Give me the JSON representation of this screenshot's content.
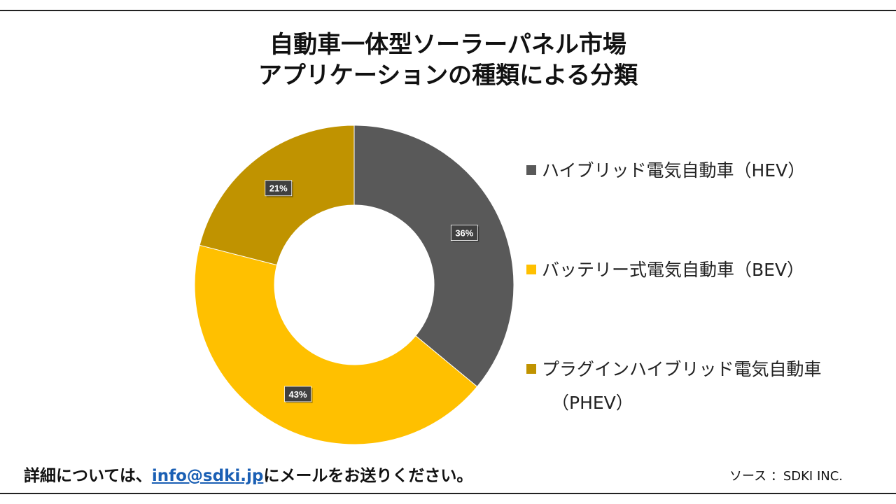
{
  "title": {
    "line1": "自動車一体型ソーラーパネル市場",
    "line2": "アプリケーションの種類による分類"
  },
  "chart_data": {
    "type": "pie",
    "variant": "donut",
    "categories": [
      "ハイブリッド電気自動車（HEV）",
      "バッテリー式電気自動車（BEV）",
      "プラグインハイブリッド電気自動車（PHEV）"
    ],
    "values": [
      36,
      43,
      21
    ],
    "labels": [
      "36%",
      "43%",
      "21%"
    ],
    "colors": [
      "#595959",
      "#FFC000",
      "#C09300"
    ],
    "legend_position": "right"
  },
  "legend": {
    "items": [
      {
        "text": "ハイブリッド電気自動車（HEV）",
        "color": "#595959"
      },
      {
        "text": "バッテリー式電気自動車（BEV）",
        "color": "#FFC000"
      },
      {
        "text": "プラグインハイブリッド電気自動車",
        "continuation": "（PHEV）",
        "color": "#C09300"
      }
    ]
  },
  "footer": {
    "prefix": "詳細については、",
    "email": "info@sdki.jp",
    "suffix": "にメールをお送りください。",
    "source": "ソース ：SDKI INC."
  }
}
